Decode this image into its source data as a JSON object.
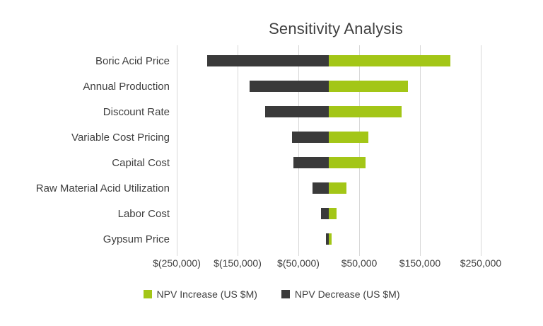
{
  "chart_data": {
    "type": "bar",
    "subtype": "tornado",
    "title": "Sensitivity Analysis",
    "categories": [
      "Boric Acid Price",
      "Annual Production",
      "Discount Rate",
      "Variable Cost Pricing",
      "Capital Cost",
      "Raw Material Acid Utilization",
      "Labor Cost",
      "Gypsum Price"
    ],
    "series": [
      {
        "name": "NPV Increase (US $M)",
        "color": "#a3c617",
        "values": [
          200000,
          130000,
          120000,
          65000,
          60000,
          29000,
          13000,
          5000
        ]
      },
      {
        "name": "NPV Decrease (US $M)",
        "color": "#3a3a3a",
        "values": [
          -200000,
          -130000,
          -105000,
          -60000,
          -58000,
          -27000,
          -13000,
          -5000
        ]
      }
    ],
    "xlim": [
      -250000,
      250000
    ],
    "x_tick_values": [
      -250000,
      -150000,
      -50000,
      50000,
      150000,
      250000
    ],
    "x_tick_labels": [
      "$(250,000)",
      "$(150,000)",
      "$(50,000)",
      "$50,000",
      "$150,000",
      "$250,000"
    ],
    "grid": "vertical",
    "gridline_color": "#d8d8d8",
    "legend_position": "bottom"
  }
}
